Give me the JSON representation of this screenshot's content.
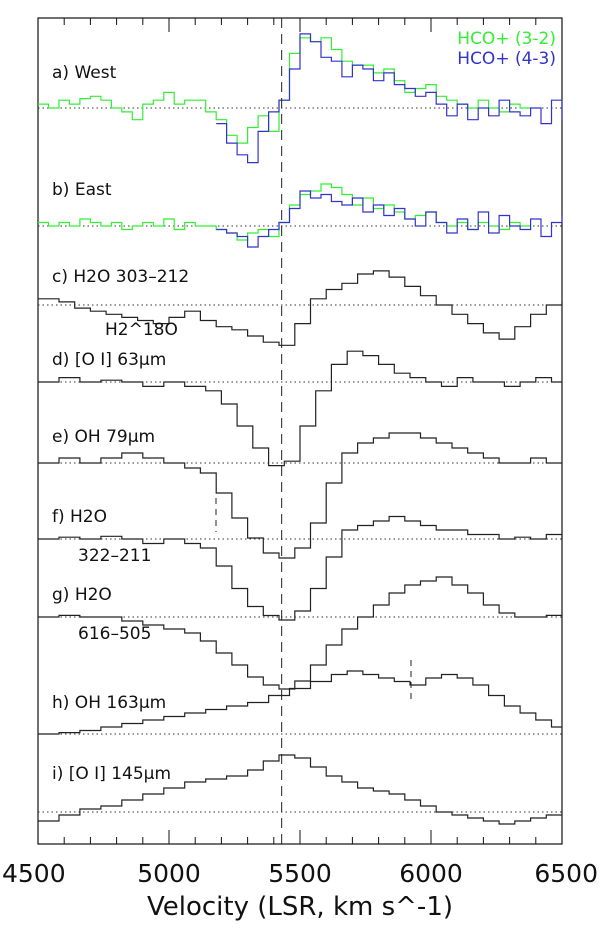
{
  "chart_data": {
    "type": "line",
    "xlabel": "Velocity (LSR, km s^-1)",
    "xlim": [
      4500,
      6500
    ],
    "x_ticks": [
      "4500",
      "5000",
      "5500",
      "6000",
      "6500"
    ],
    "vlines": [
      5430
    ],
    "legend": [
      {
        "label": "HCO+ (3-2)",
        "color": "#33ee33"
      },
      {
        "label": "HCO+ (4-3)",
        "color": "#3333cc"
      }
    ],
    "panels": [
      {
        "id": "a",
        "label": "a) West",
        "ylim": [
          -1.0,
          1.0
        ],
        "series": [
          {
            "name": "HCO+ (3-2)",
            "color": "#33ee33",
            "x": [
              4500,
              4540,
              4580,
              4620,
              4660,
              4700,
              4740,
              4780,
              4820,
              4860,
              4900,
              4940,
              4980,
              5020,
              5060,
              5100,
              5140,
              5180,
              5220,
              5260,
              5300,
              5340,
              5380,
              5420,
              5460,
              5500,
              5540,
              5580,
              5620,
              5660,
              5700,
              5740,
              5780,
              5820,
              5860,
              5900,
              5940,
              5980,
              6020,
              6060,
              6100,
              6140,
              6180,
              6220,
              6260,
              6300,
              6340
            ],
            "y": [
              0.05,
              0.0,
              0.1,
              0.05,
              0.12,
              0.15,
              0.1,
              0.0,
              -0.05,
              -0.15,
              0.05,
              0.1,
              0.2,
              0.05,
              0.1,
              0.1,
              -0.05,
              -0.15,
              -0.35,
              -0.45,
              -0.25,
              -0.1,
              -0.3,
              0.1,
              0.7,
              0.9,
              0.85,
              0.9,
              0.75,
              0.6,
              0.55,
              0.55,
              0.45,
              0.5,
              0.35,
              0.2,
              0.25,
              0.3,
              0.15,
              0.1,
              0.05,
              0.0,
              0.1,
              0.0,
              -0.05,
              0.05,
              0.0
            ]
          },
          {
            "name": "HCO+ (4-3)",
            "color": "#3333cc",
            "x": [
              5180,
              5220,
              5260,
              5300,
              5340,
              5380,
              5420,
              5460,
              5500,
              5540,
              5580,
              5620,
              5660,
              5700,
              5740,
              5780,
              5820,
              5860,
              5900,
              5940,
              5980,
              6020,
              6060,
              6100,
              6140,
              6180,
              6220,
              6260,
              6300,
              6340,
              6380,
              6420,
              6460,
              6500
            ],
            "y": [
              -0.2,
              -0.45,
              -0.6,
              -0.7,
              -0.3,
              -0.05,
              0.1,
              0.5,
              0.95,
              0.85,
              0.65,
              0.6,
              0.4,
              0.55,
              0.5,
              0.35,
              0.45,
              0.3,
              0.25,
              0.15,
              0.2,
              0.05,
              -0.1,
              0.05,
              -0.15,
              0.0,
              -0.1,
              0.1,
              -0.05,
              -0.1,
              0.0,
              -0.2,
              0.1,
              -0.15
            ]
          }
        ]
      },
      {
        "id": "b",
        "label": "b) East",
        "ylim": [
          -1.0,
          1.0
        ],
        "series": [
          {
            "name": "HCO+ (3-2)",
            "color": "#33ee33",
            "x": [
              4500,
              4540,
              4580,
              4620,
              4660,
              4700,
              4740,
              4780,
              4820,
              4860,
              4900,
              4940,
              4980,
              5020,
              5060,
              5100,
              5140,
              5180,
              5220,
              5260,
              5300,
              5340,
              5380,
              5420,
              5460,
              5500,
              5540,
              5580,
              5620,
              5660,
              5700,
              5740,
              5780,
              5820,
              5860,
              5900,
              5940,
              5980,
              6020,
              6060,
              6100,
              6140,
              6180,
              6220,
              6260,
              6300,
              6340
            ],
            "y": [
              0.05,
              0.0,
              0.05,
              0.0,
              0.1,
              0.05,
              0.0,
              0.05,
              -0.05,
              0.0,
              0.05,
              0.0,
              0.1,
              -0.05,
              0.05,
              0.0,
              0.0,
              -0.05,
              -0.1,
              -0.2,
              -0.1,
              -0.05,
              -0.15,
              0.05,
              0.3,
              0.45,
              0.5,
              0.6,
              0.55,
              0.45,
              0.3,
              0.4,
              0.25,
              0.3,
              0.2,
              0.1,
              0.15,
              0.2,
              0.05,
              0.0,
              0.05,
              -0.05,
              0.05,
              0.0,
              -0.05,
              0.05,
              0.0
            ]
          },
          {
            "name": "HCO+ (4-3)",
            "color": "#3333cc",
            "x": [
              5180,
              5220,
              5260,
              5300,
              5340,
              5380,
              5420,
              5460,
              5500,
              5540,
              5580,
              5620,
              5660,
              5700,
              5740,
              5780,
              5820,
              5860,
              5900,
              5940,
              5980,
              6020,
              6060,
              6100,
              6140,
              6180,
              6220,
              6260,
              6300,
              6340,
              6380,
              6420,
              6460,
              6500
            ],
            "y": [
              -0.05,
              -0.1,
              -0.15,
              -0.3,
              -0.15,
              -0.05,
              0.05,
              0.25,
              0.5,
              0.4,
              0.45,
              0.35,
              0.3,
              0.4,
              0.2,
              0.3,
              0.15,
              0.25,
              0.1,
              0.0,
              0.2,
              0.05,
              -0.1,
              0.1,
              -0.05,
              0.2,
              -0.1,
              0.15,
              0.0,
              -0.05,
              0.1,
              -0.15,
              0.05,
              0.15
            ]
          }
        ]
      },
      {
        "id": "c",
        "label": "c) H2O 303–212",
        "sub_label": "H2^18O",
        "ylim": [
          -1.0,
          1.0
        ],
        "series": [
          {
            "name": "",
            "color": "#222222",
            "x": [
              4500,
              4580,
              4640,
              4700,
              4760,
              4820,
              4880,
              4940,
              5000,
              5060,
              5120,
              5180,
              5240,
              5300,
              5360,
              5420,
              5480,
              5540,
              5600,
              5660,
              5720,
              5780,
              5840,
              5900,
              5960,
              6020,
              6080,
              6140,
              6200,
              6260,
              6320,
              6380,
              6440,
              6500
            ],
            "y": [
              0.1,
              0.05,
              -0.05,
              -0.1,
              -0.15,
              -0.2,
              -0.25,
              -0.3,
              -0.2,
              -0.1,
              -0.25,
              -0.35,
              -0.4,
              -0.5,
              -0.6,
              -0.65,
              -0.3,
              0.1,
              0.25,
              0.35,
              0.5,
              0.55,
              0.45,
              0.3,
              0.15,
              0.0,
              -0.15,
              -0.3,
              -0.45,
              -0.55,
              -0.35,
              -0.15,
              0.0,
              0.05
            ]
          }
        ]
      },
      {
        "id": "d",
        "label": "d) [O I] 63μm",
        "ylim": [
          -1.0,
          1.0
        ],
        "series": [
          {
            "name": "",
            "color": "#222222",
            "x": [
              4500,
              4580,
              4660,
              4740,
              4820,
              4900,
              4980,
              5060,
              5140,
              5200,
              5260,
              5320,
              5380,
              5440,
              5500,
              5560,
              5620,
              5680,
              5740,
              5800,
              5860,
              5920,
              5980,
              6040,
              6100,
              6160,
              6220,
              6280,
              6340,
              6400,
              6460
            ],
            "y": [
              0.0,
              0.05,
              0.0,
              0.02,
              0.0,
              -0.05,
              0.0,
              -0.05,
              -0.1,
              -0.25,
              -0.5,
              -0.75,
              -0.95,
              -0.9,
              -0.5,
              -0.1,
              0.2,
              0.35,
              0.3,
              0.2,
              0.1,
              0.05,
              0.0,
              -0.05,
              0.05,
              0.0,
              0.0,
              -0.05,
              0.0,
              0.05,
              0.0
            ]
          }
        ]
      },
      {
        "id": "e",
        "label": "e) OH 79μm",
        "ylim": [
          -1.0,
          1.0
        ],
        "series": [
          {
            "name": "",
            "color": "#222222",
            "x": [
              4500,
              4580,
              4660,
              4740,
              4820,
              4900,
              4980,
              5060,
              5120,
              5180,
              5240,
              5300,
              5360,
              5420,
              5480,
              5540,
              5600,
              5660,
              5720,
              5780,
              5840,
              5900,
              5960,
              6020,
              6080,
              6140,
              6200,
              6260,
              6320,
              6380,
              6440,
              6500
            ],
            "y": [
              0.0,
              0.05,
              0.0,
              0.05,
              0.1,
              0.05,
              0.0,
              -0.05,
              -0.1,
              -0.3,
              -0.55,
              -0.75,
              -0.9,
              -0.95,
              -0.85,
              -0.6,
              -0.2,
              0.1,
              0.2,
              0.25,
              0.3,
              0.3,
              0.25,
              0.2,
              0.15,
              0.1,
              0.05,
              0.0,
              0.0,
              0.05,
              0.0,
              0.0
            ]
          }
        ]
      },
      {
        "id": "f",
        "label": "f) H2O",
        "sub_label": "322–211",
        "ylim": [
          -1.0,
          1.0
        ],
        "series": [
          {
            "name": "",
            "color": "#222222",
            "x": [
              4500,
              4580,
              4660,
              4740,
              4820,
              4900,
              4980,
              5060,
              5120,
              5180,
              5240,
              5300,
              5360,
              5420,
              5480,
              5540,
              5600,
              5660,
              5720,
              5780,
              5840,
              5900,
              5960,
              6020,
              6080,
              6140,
              6200,
              6260,
              6320,
              6380,
              6440,
              6500
            ],
            "y": [
              0.0,
              0.02,
              0.0,
              0.03,
              0.0,
              -0.05,
              0.0,
              -0.05,
              -0.1,
              -0.3,
              -0.55,
              -0.75,
              -0.85,
              -0.9,
              -0.8,
              -0.55,
              -0.2,
              0.1,
              0.15,
              0.2,
              0.25,
              0.2,
              0.15,
              0.1,
              0.1,
              0.05,
              0.05,
              0.0,
              0.02,
              0.0,
              0.05,
              0.0
            ]
          }
        ]
      },
      {
        "id": "g",
        "label": "g) H2O",
        "sub_label": "616–505",
        "ylim": [
          -1.0,
          1.0
        ],
        "series": [
          {
            "name": "",
            "color": "#222222",
            "x": [
              4500,
              4580,
              4660,
              4740,
              4820,
              4900,
              4980,
              5060,
              5120,
              5180,
              5240,
              5300,
              5360,
              5420,
              5480,
              5540,
              5600,
              5660,
              5720,
              5780,
              5840,
              5900,
              5960,
              6020,
              6080,
              6140,
              6200,
              6260,
              6320,
              6380,
              6440,
              6500
            ],
            "y": [
              0.0,
              0.02,
              0.0,
              0.0,
              -0.05,
              -0.1,
              -0.15,
              -0.2,
              -0.3,
              -0.45,
              -0.6,
              -0.75,
              -0.85,
              -0.9,
              -0.8,
              -0.6,
              -0.35,
              -0.15,
              0.0,
              0.15,
              0.3,
              0.4,
              0.45,
              0.5,
              0.4,
              0.3,
              0.15,
              0.05,
              0.0,
              0.0,
              0.02,
              0.0
            ]
          }
        ]
      },
      {
        "id": "h",
        "label": "h) OH 163μm",
        "ylim": [
          -1.0,
          1.0
        ],
        "series": [
          {
            "name": "",
            "color": "#222222",
            "x": [
              4500,
              4580,
              4660,
              4740,
              4820,
              4900,
              4980,
              5060,
              5140,
              5220,
              5300,
              5380,
              5460,
              5540,
              5620,
              5680,
              5740,
              5800,
              5860,
              5920,
              5980,
              6040,
              6100,
              6160,
              6220,
              6280,
              6340,
              6400,
              6460
            ],
            "y": [
              0.0,
              0.02,
              0.05,
              0.1,
              0.15,
              0.2,
              0.25,
              0.3,
              0.35,
              0.4,
              0.45,
              0.55,
              0.65,
              0.75,
              0.85,
              0.9,
              0.85,
              0.8,
              0.75,
              0.7,
              0.8,
              0.85,
              0.8,
              0.7,
              0.55,
              0.4,
              0.3,
              0.2,
              0.1
            ]
          }
        ]
      },
      {
        "id": "i",
        "label": "i) [O I] 145μm",
        "ylim": [
          -1.0,
          1.0
        ],
        "series": [
          {
            "name": "",
            "color": "#222222",
            "x": [
              4500,
              4580,
              4660,
              4740,
              4820,
              4900,
              4980,
              5060,
              5140,
              5220,
              5300,
              5360,
              5420,
              5480,
              5540,
              5600,
              5660,
              5720,
              5780,
              5840,
              5900,
              5960,
              6020,
              6080,
              6140,
              6200,
              6260,
              6320,
              6380,
              6440
            ],
            "y": [
              -0.15,
              -0.05,
              0.05,
              0.1,
              0.2,
              0.3,
              0.4,
              0.5,
              0.55,
              0.6,
              0.7,
              0.85,
              0.95,
              0.9,
              0.75,
              0.6,
              0.5,
              0.4,
              0.35,
              0.3,
              0.2,
              0.1,
              0.0,
              -0.05,
              -0.1,
              -0.15,
              -0.2,
              -0.15,
              -0.1,
              -0.05
            ]
          }
        ]
      }
    ]
  }
}
